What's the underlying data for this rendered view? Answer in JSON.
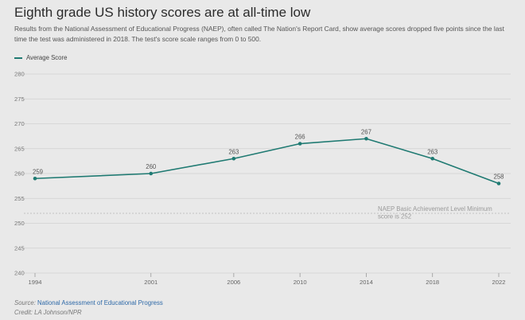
{
  "header": {
    "title": "Eighth grade US history scores are at all-time low",
    "subtitle": "Results from the National Assessment of Educational Progress (NAEP), often called The Nation's Report Card, show average scores dropped five points since the last time the test was administered in 2018. The test's score scale ranges from 0 to 500."
  },
  "colors": {
    "series": "#1f7a72",
    "grid": "#d0d0d0",
    "reference": "#b8b8b8",
    "background": "#e9e9e9"
  },
  "chart_data": {
    "type": "line",
    "x": [
      "1994",
      "2001",
      "2006",
      "2010",
      "2014",
      "2018",
      "2022"
    ],
    "series": [
      {
        "name": "Average Score",
        "values": [
          259,
          260,
          263,
          266,
          267,
          263,
          258
        ]
      }
    ],
    "ylim": [
      240,
      280
    ],
    "yticks": [
      240,
      245,
      250,
      255,
      260,
      265,
      270,
      275,
      280
    ],
    "grid": "horizontal",
    "legend": "top-left",
    "reference_line": {
      "value": 252,
      "label_line1": "NAEP Basic Achievement Level Minimum",
      "label_line2": "score is 252"
    }
  },
  "footer": {
    "source_prefix": "Source:",
    "source_name": "National Assessment of Educational Progress",
    "credit": "Credit: LA Johnson/NPR"
  }
}
